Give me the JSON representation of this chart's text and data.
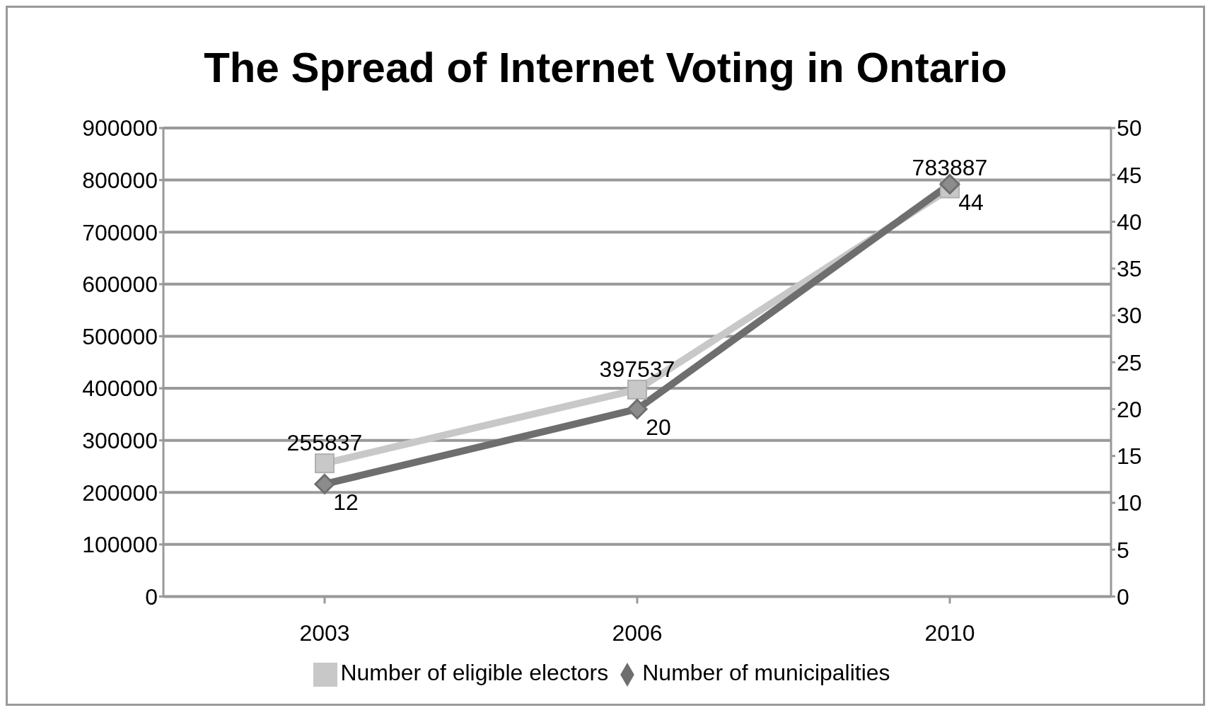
{
  "chart_data": {
    "type": "line",
    "title": "The Spread of Internet Voting in Ontario",
    "categories": [
      "2003",
      "2006",
      "2010"
    ],
    "series": [
      {
        "name": "Number of eligible electors",
        "color": "#c8c8c8",
        "values": [
          255837,
          397537,
          783887
        ],
        "marker": "square"
      },
      {
        "name": "Number of municipalities",
        "color": "#6e6e6e",
        "values": [
          12,
          20,
          44
        ],
        "marker": "diamond",
        "axis": "y2"
      }
    ],
    "ylim": [
      0,
      900000
    ],
    "yticks": [
      0,
      100000,
      200000,
      300000,
      400000,
      500000,
      600000,
      700000,
      800000,
      900000
    ],
    "y2lim": [
      0,
      50
    ],
    "y2ticks": [
      0,
      5,
      10,
      15,
      20,
      25,
      30,
      35,
      40,
      45,
      50
    ],
    "grid": "y",
    "legend": "bottom",
    "data_labels": true,
    "line_style": "solid"
  }
}
